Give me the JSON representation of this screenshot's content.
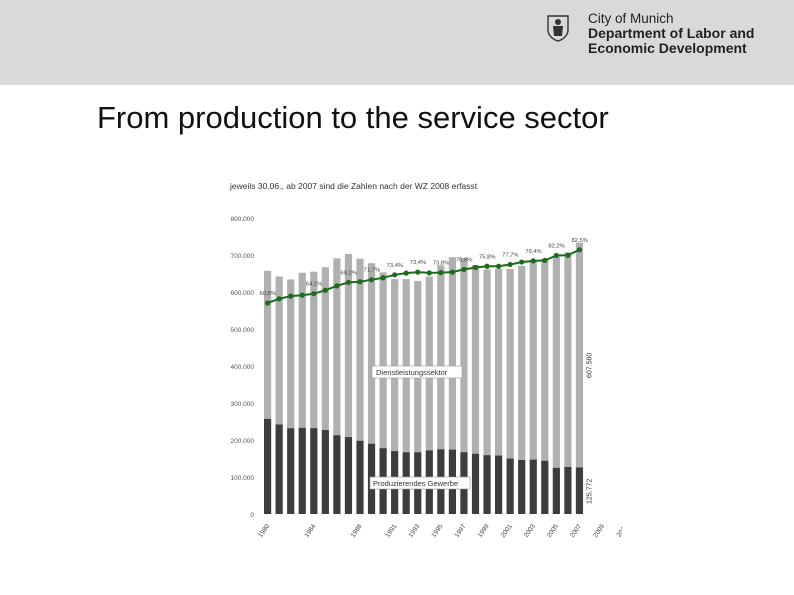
{
  "header": {
    "org_line1": "City of Munich",
    "org_line2": "Department of Labor and",
    "org_line3": "Economic Development",
    "crest_icon": "munich-monk-crest-icon"
  },
  "slide": {
    "title": "From production to the service sector"
  },
  "colors": {
    "band": "#d9d9d9",
    "light_bar": "#b0b0b0",
    "dark_bar": "#3d3d3d",
    "line": "#1e6b1e"
  },
  "chart_data": {
    "type": "bar",
    "subtype": "stacked-bar-with-line",
    "title": "jeweils 30.06., ab 2007 sind die Zahlen nach der WZ 2008 erfasst",
    "x": [
      1980,
      1981,
      1982,
      1983,
      1984,
      1985,
      1986,
      1987,
      1988,
      1989,
      1990,
      1991,
      1992,
      1993,
      1994,
      1995,
      1996,
      1997,
      1998,
      1999,
      2000,
      2001,
      2002,
      2003,
      2004,
      2005,
      2006,
      2007,
      2008,
      2009,
      2010,
      2011,
      2012
    ],
    "x_tick_labels": [
      "1980",
      "1984",
      "1988",
      "1991",
      "1993",
      "1995",
      "1997",
      "1999",
      "2001",
      "2003",
      "2005",
      "2007",
      "2009",
      "2011"
    ],
    "ylim": [
      0,
      800000
    ],
    "y_ticks": [
      "0",
      "100.000",
      "200.000",
      "300.000",
      "400.000",
      "500.000",
      "600.000",
      "700.000",
      "800.000"
    ],
    "grid": false,
    "series": [
      {
        "name": "Produzierendes Gewerbe",
        "values": [
          257000,
          242000,
          232000,
          233000,
          232000,
          227000,
          213000,
          208000,
          198000,
          190000,
          178000,
          170000,
          167000,
          167000,
          172000,
          175000,
          174000,
          167000,
          163000,
          159000,
          158000,
          150000,
          146000,
          147000,
          144000,
          125000,
          127000,
          125772,
          0,
          0,
          0,
          0,
          0
        ]
      },
      {
        "name": "Dienstleistungssektor",
        "values": [
          400000,
          400000,
          402000,
          419000,
          423000,
          440000,
          478000,
          495000,
          492000,
          488000,
          475000,
          465000,
          468000,
          463000,
          470000,
          497000,
          520000,
          525000,
          510000,
          502000,
          505000,
          512000,
          525000,
          539000,
          545000,
          570000,
          580000,
          607560,
          0,
          0,
          0,
          0,
          0
        ]
      }
    ],
    "share_line": {
      "name": "Anteil Dienstleistungssektor",
      "values": [
        60.8,
        62.5,
        63.6,
        64.0,
        64.6,
        66.0,
        67.8,
        69.2,
        69.5,
        70.3,
        71.1,
        72.3,
        73.0,
        73.4,
        73.1,
        73.2,
        73.4,
        74.5,
        75.3,
        75.8,
        75.8,
        76.5,
        77.5,
        78.0,
        78.2,
        80.2,
        80.3,
        82.5
      ],
      "labels": [
        "60,8%",
        "64,1%",
        "69,2%",
        "71,7%",
        "73,4%",
        "73,4%",
        "73,8%",
        "75,8%",
        "75,8%",
        "77,7%",
        "79,4%",
        "82,2%",
        "82,5%"
      ]
    },
    "annotations": {
      "service_label": "Dienstleistungssektor",
      "production_label": "Produzierendes Gewerbe",
      "last_service_value": "607.560",
      "last_production_value": "125.772"
    }
  }
}
